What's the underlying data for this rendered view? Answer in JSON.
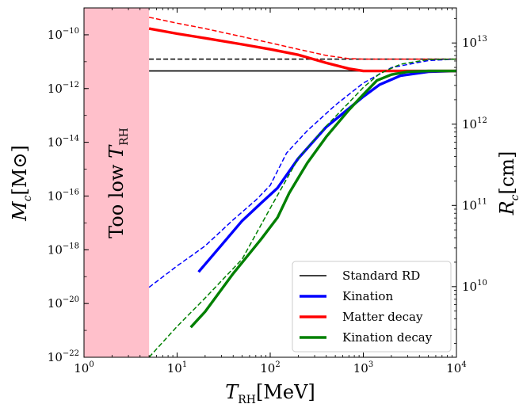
{
  "chart_data": {
    "type": "line",
    "xscale": "log",
    "yscale": "log",
    "xlim": [
      1,
      10000
    ],
    "ylim": [
      1e-22,
      1e-09
    ],
    "right_ylim": [
      1350000000.0,
      27000000000000.0
    ],
    "xlabel": {
      "main": "T",
      "sub": "RH",
      "unit": "[MeV]"
    },
    "ylabel": {
      "main": "M",
      "sub": "c",
      "unit": "[M",
      "unit_sym": "⊙",
      "unit_close": "]"
    },
    "right_ylabel": {
      "main": "R",
      "sub": "c",
      "unit": "[cm]"
    },
    "x_ticks": [
      {
        "value": 1,
        "base": "10",
        "exp": "0"
      },
      {
        "value": 10,
        "base": "10",
        "exp": "1"
      },
      {
        "value": 100,
        "base": "10",
        "exp": "2"
      },
      {
        "value": 1000,
        "base": "10",
        "exp": "3"
      },
      {
        "value": 10000,
        "base": "10",
        "exp": "4"
      }
    ],
    "y_ticks": [
      {
        "value": 1e-10,
        "base": "10",
        "exp": "−10"
      },
      {
        "value": 1e-12,
        "base": "10",
        "exp": "−12"
      },
      {
        "value": 1e-14,
        "base": "10",
        "exp": "−14"
      },
      {
        "value": 1e-16,
        "base": "10",
        "exp": "−16"
      },
      {
        "value": 1e-18,
        "base": "10",
        "exp": "−18"
      },
      {
        "value": 1e-20,
        "base": "10",
        "exp": "−20"
      },
      {
        "value": 1e-22,
        "base": "10",
        "exp": "−22"
      }
    ],
    "right_ticks": [
      {
        "value": 10000000000000.0,
        "base": "10",
        "exp": "13"
      },
      {
        "value": 1000000000000.0,
        "base": "10",
        "exp": "12"
      },
      {
        "value": 100000000000.0,
        "base": "10",
        "exp": "11"
      },
      {
        "value": 10000000000.0,
        "base": "10",
        "exp": "10"
      }
    ],
    "shaded_region": {
      "x_range": [
        1,
        5
      ],
      "color": "#ffc0cb",
      "label": {
        "main": "Too low ",
        "T": "T",
        "sub": "RH"
      }
    },
    "legend": {
      "position": "lower-right",
      "entries": [
        {
          "name": "Standard RD",
          "color": "#000000"
        },
        {
          "name": "Kination",
          "color": "#0000ff"
        },
        {
          "name": "Matter decay",
          "color": "#ff0000"
        },
        {
          "name": "Kination decay",
          "color": "#008000"
        }
      ]
    },
    "series": [
      {
        "name": "Standard RD",
        "style": "solid",
        "color": "#000000",
        "x": [
          5,
          10000
        ],
        "y": [
          4.5e-12,
          4.5e-12
        ]
      },
      {
        "name": "Standard RD",
        "style": "dashed",
        "color": "#000000",
        "x": [
          5,
          10000
        ],
        "y": [
          1.25e-11,
          1.25e-11
        ]
      },
      {
        "name": "Kination",
        "style": "solid",
        "color": "#0000ff",
        "x": [
          17,
          30,
          50,
          80,
          120,
          200,
          400,
          700,
          1000,
          1500,
          2500,
          5000,
          10000
        ],
        "y": [
          1.5e-19,
          1.5e-18,
          1.2e-17,
          5.5e-17,
          2e-16,
          2.5e-15,
          3.7e-14,
          1.8e-13,
          5e-13,
          1.4e-12,
          3e-12,
          4.2e-12,
          4.5e-12
        ]
      },
      {
        "name": "Kination",
        "style": "dashed",
        "color": "#0000ff",
        "x": [
          5,
          10,
          20,
          40,
          70,
          100,
          150,
          250,
          500,
          1000,
          2000,
          5000,
          10000
        ],
        "y": [
          4e-20,
          2.5e-19,
          1.4e-18,
          1.3e-17,
          7e-17,
          2.5e-16,
          4e-15,
          2.7e-14,
          2.4e-13,
          1.6e-12,
          6e-12,
          1.1e-11,
          1.25e-11
        ]
      },
      {
        "name": "Matter decay",
        "style": "solid",
        "color": "#ff0000",
        "x": [
          5,
          10,
          20,
          50,
          100,
          200,
          400,
          700,
          1000,
          2000,
          5000,
          10000
        ],
        "y": [
          1.7e-10,
          1.1e-10,
          7.5e-11,
          4.4e-11,
          2.9e-11,
          1.8e-11,
          9e-12,
          5.5e-12,
          4.5e-12,
          4.5e-12,
          4.5e-12,
          4.5e-12
        ]
      },
      {
        "name": "Matter decay",
        "style": "dashed",
        "color": "#ff0000",
        "x": [
          5,
          10,
          20,
          50,
          100,
          200,
          400,
          700,
          1000,
          2000,
          5000,
          10000
        ],
        "y": [
          4.5e-10,
          2.7e-10,
          1.7e-10,
          8.5e-11,
          5e-11,
          2.9e-11,
          1.7e-11,
          1.3e-11,
          1.25e-11,
          1.25e-11,
          1.25e-11,
          1.25e-11
        ]
      },
      {
        "name": "Kination decay",
        "style": "solid",
        "color": "#008000",
        "x": [
          14,
          20,
          40,
          80,
          120,
          160,
          250,
          400,
          700,
          1000,
          1400,
          2000,
          3000,
          5000,
          10000
        ],
        "y": [
          1.3e-21,
          5e-21,
          1.3e-19,
          2.5e-18,
          1.6e-17,
          1.3e-16,
          1.7e-15,
          1.6e-14,
          1.6e-13,
          6e-13,
          2e-12,
          3.3e-12,
          4.2e-12,
          4.5e-12,
          4.5e-12
        ]
      },
      {
        "name": "Kination decay",
        "style": "dashed",
        "color": "#008000",
        "x": [
          5,
          10,
          20,
          50,
          100,
          200,
          400,
          700,
          1000,
          1500,
          2500,
          5000,
          10000
        ],
        "y": [
          1e-22,
          1.4e-21,
          1.6e-20,
          4.5e-19,
          3.5e-17,
          2.5e-15,
          4e-14,
          3e-13,
          1.1e-12,
          3.6e-12,
          8e-12,
          1.2e-11,
          1.25e-11
        ]
      }
    ]
  }
}
